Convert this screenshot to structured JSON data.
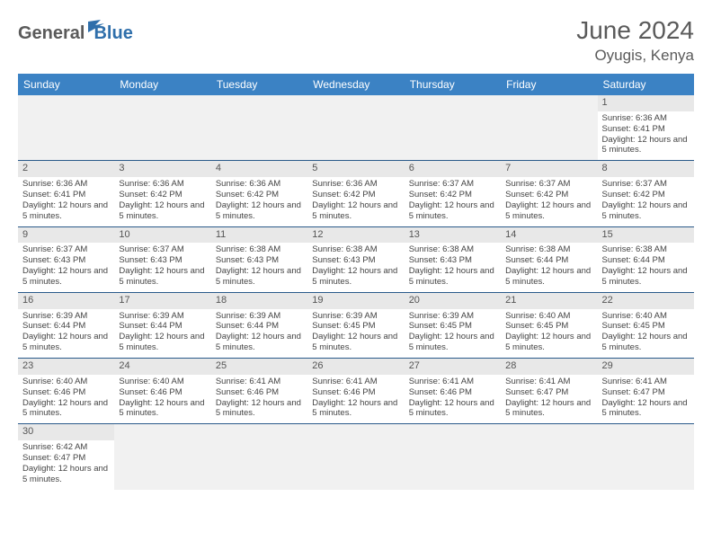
{
  "brand": {
    "part1": "General",
    "part2": "Blue"
  },
  "title": "June 2024",
  "location": "Oyugis, Kenya",
  "colors": {
    "header_bg": "#3b82c4",
    "header_text": "#ffffff",
    "row_divider": "#2a5a8a",
    "daynum_bg": "#e8e8e8",
    "logo_gray": "#5a5a5a",
    "logo_blue": "#2f6fab"
  },
  "weekdays": [
    "Sunday",
    "Monday",
    "Tuesday",
    "Wednesday",
    "Thursday",
    "Friday",
    "Saturday"
  ],
  "grid": [
    [
      null,
      null,
      null,
      null,
      null,
      null,
      {
        "n": "1",
        "sr": "6:36 AM",
        "ss": "6:41 PM",
        "dl": "12 hours and 5 minutes."
      }
    ],
    [
      {
        "n": "2",
        "sr": "6:36 AM",
        "ss": "6:41 PM",
        "dl": "12 hours and 5 minutes."
      },
      {
        "n": "3",
        "sr": "6:36 AM",
        "ss": "6:42 PM",
        "dl": "12 hours and 5 minutes."
      },
      {
        "n": "4",
        "sr": "6:36 AM",
        "ss": "6:42 PM",
        "dl": "12 hours and 5 minutes."
      },
      {
        "n": "5",
        "sr": "6:36 AM",
        "ss": "6:42 PM",
        "dl": "12 hours and 5 minutes."
      },
      {
        "n": "6",
        "sr": "6:37 AM",
        "ss": "6:42 PM",
        "dl": "12 hours and 5 minutes."
      },
      {
        "n": "7",
        "sr": "6:37 AM",
        "ss": "6:42 PM",
        "dl": "12 hours and 5 minutes."
      },
      {
        "n": "8",
        "sr": "6:37 AM",
        "ss": "6:42 PM",
        "dl": "12 hours and 5 minutes."
      }
    ],
    [
      {
        "n": "9",
        "sr": "6:37 AM",
        "ss": "6:43 PM",
        "dl": "12 hours and 5 minutes."
      },
      {
        "n": "10",
        "sr": "6:37 AM",
        "ss": "6:43 PM",
        "dl": "12 hours and 5 minutes."
      },
      {
        "n": "11",
        "sr": "6:38 AM",
        "ss": "6:43 PM",
        "dl": "12 hours and 5 minutes."
      },
      {
        "n": "12",
        "sr": "6:38 AM",
        "ss": "6:43 PM",
        "dl": "12 hours and 5 minutes."
      },
      {
        "n": "13",
        "sr": "6:38 AM",
        "ss": "6:43 PM",
        "dl": "12 hours and 5 minutes."
      },
      {
        "n": "14",
        "sr": "6:38 AM",
        "ss": "6:44 PM",
        "dl": "12 hours and 5 minutes."
      },
      {
        "n": "15",
        "sr": "6:38 AM",
        "ss": "6:44 PM",
        "dl": "12 hours and 5 minutes."
      }
    ],
    [
      {
        "n": "16",
        "sr": "6:39 AM",
        "ss": "6:44 PM",
        "dl": "12 hours and 5 minutes."
      },
      {
        "n": "17",
        "sr": "6:39 AM",
        "ss": "6:44 PM",
        "dl": "12 hours and 5 minutes."
      },
      {
        "n": "18",
        "sr": "6:39 AM",
        "ss": "6:44 PM",
        "dl": "12 hours and 5 minutes."
      },
      {
        "n": "19",
        "sr": "6:39 AM",
        "ss": "6:45 PM",
        "dl": "12 hours and 5 minutes."
      },
      {
        "n": "20",
        "sr": "6:39 AM",
        "ss": "6:45 PM",
        "dl": "12 hours and 5 minutes."
      },
      {
        "n": "21",
        "sr": "6:40 AM",
        "ss": "6:45 PM",
        "dl": "12 hours and 5 minutes."
      },
      {
        "n": "22",
        "sr": "6:40 AM",
        "ss": "6:45 PM",
        "dl": "12 hours and 5 minutes."
      }
    ],
    [
      {
        "n": "23",
        "sr": "6:40 AM",
        "ss": "6:46 PM",
        "dl": "12 hours and 5 minutes."
      },
      {
        "n": "24",
        "sr": "6:40 AM",
        "ss": "6:46 PM",
        "dl": "12 hours and 5 minutes."
      },
      {
        "n": "25",
        "sr": "6:41 AM",
        "ss": "6:46 PM",
        "dl": "12 hours and 5 minutes."
      },
      {
        "n": "26",
        "sr": "6:41 AM",
        "ss": "6:46 PM",
        "dl": "12 hours and 5 minutes."
      },
      {
        "n": "27",
        "sr": "6:41 AM",
        "ss": "6:46 PM",
        "dl": "12 hours and 5 minutes."
      },
      {
        "n": "28",
        "sr": "6:41 AM",
        "ss": "6:47 PM",
        "dl": "12 hours and 5 minutes."
      },
      {
        "n": "29",
        "sr": "6:41 AM",
        "ss": "6:47 PM",
        "dl": "12 hours and 5 minutes."
      }
    ],
    [
      {
        "n": "30",
        "sr": "6:42 AM",
        "ss": "6:47 PM",
        "dl": "12 hours and 5 minutes."
      },
      null,
      null,
      null,
      null,
      null,
      null
    ]
  ],
  "labels": {
    "sunrise": "Sunrise:",
    "sunset": "Sunset:",
    "daylight": "Daylight:"
  }
}
